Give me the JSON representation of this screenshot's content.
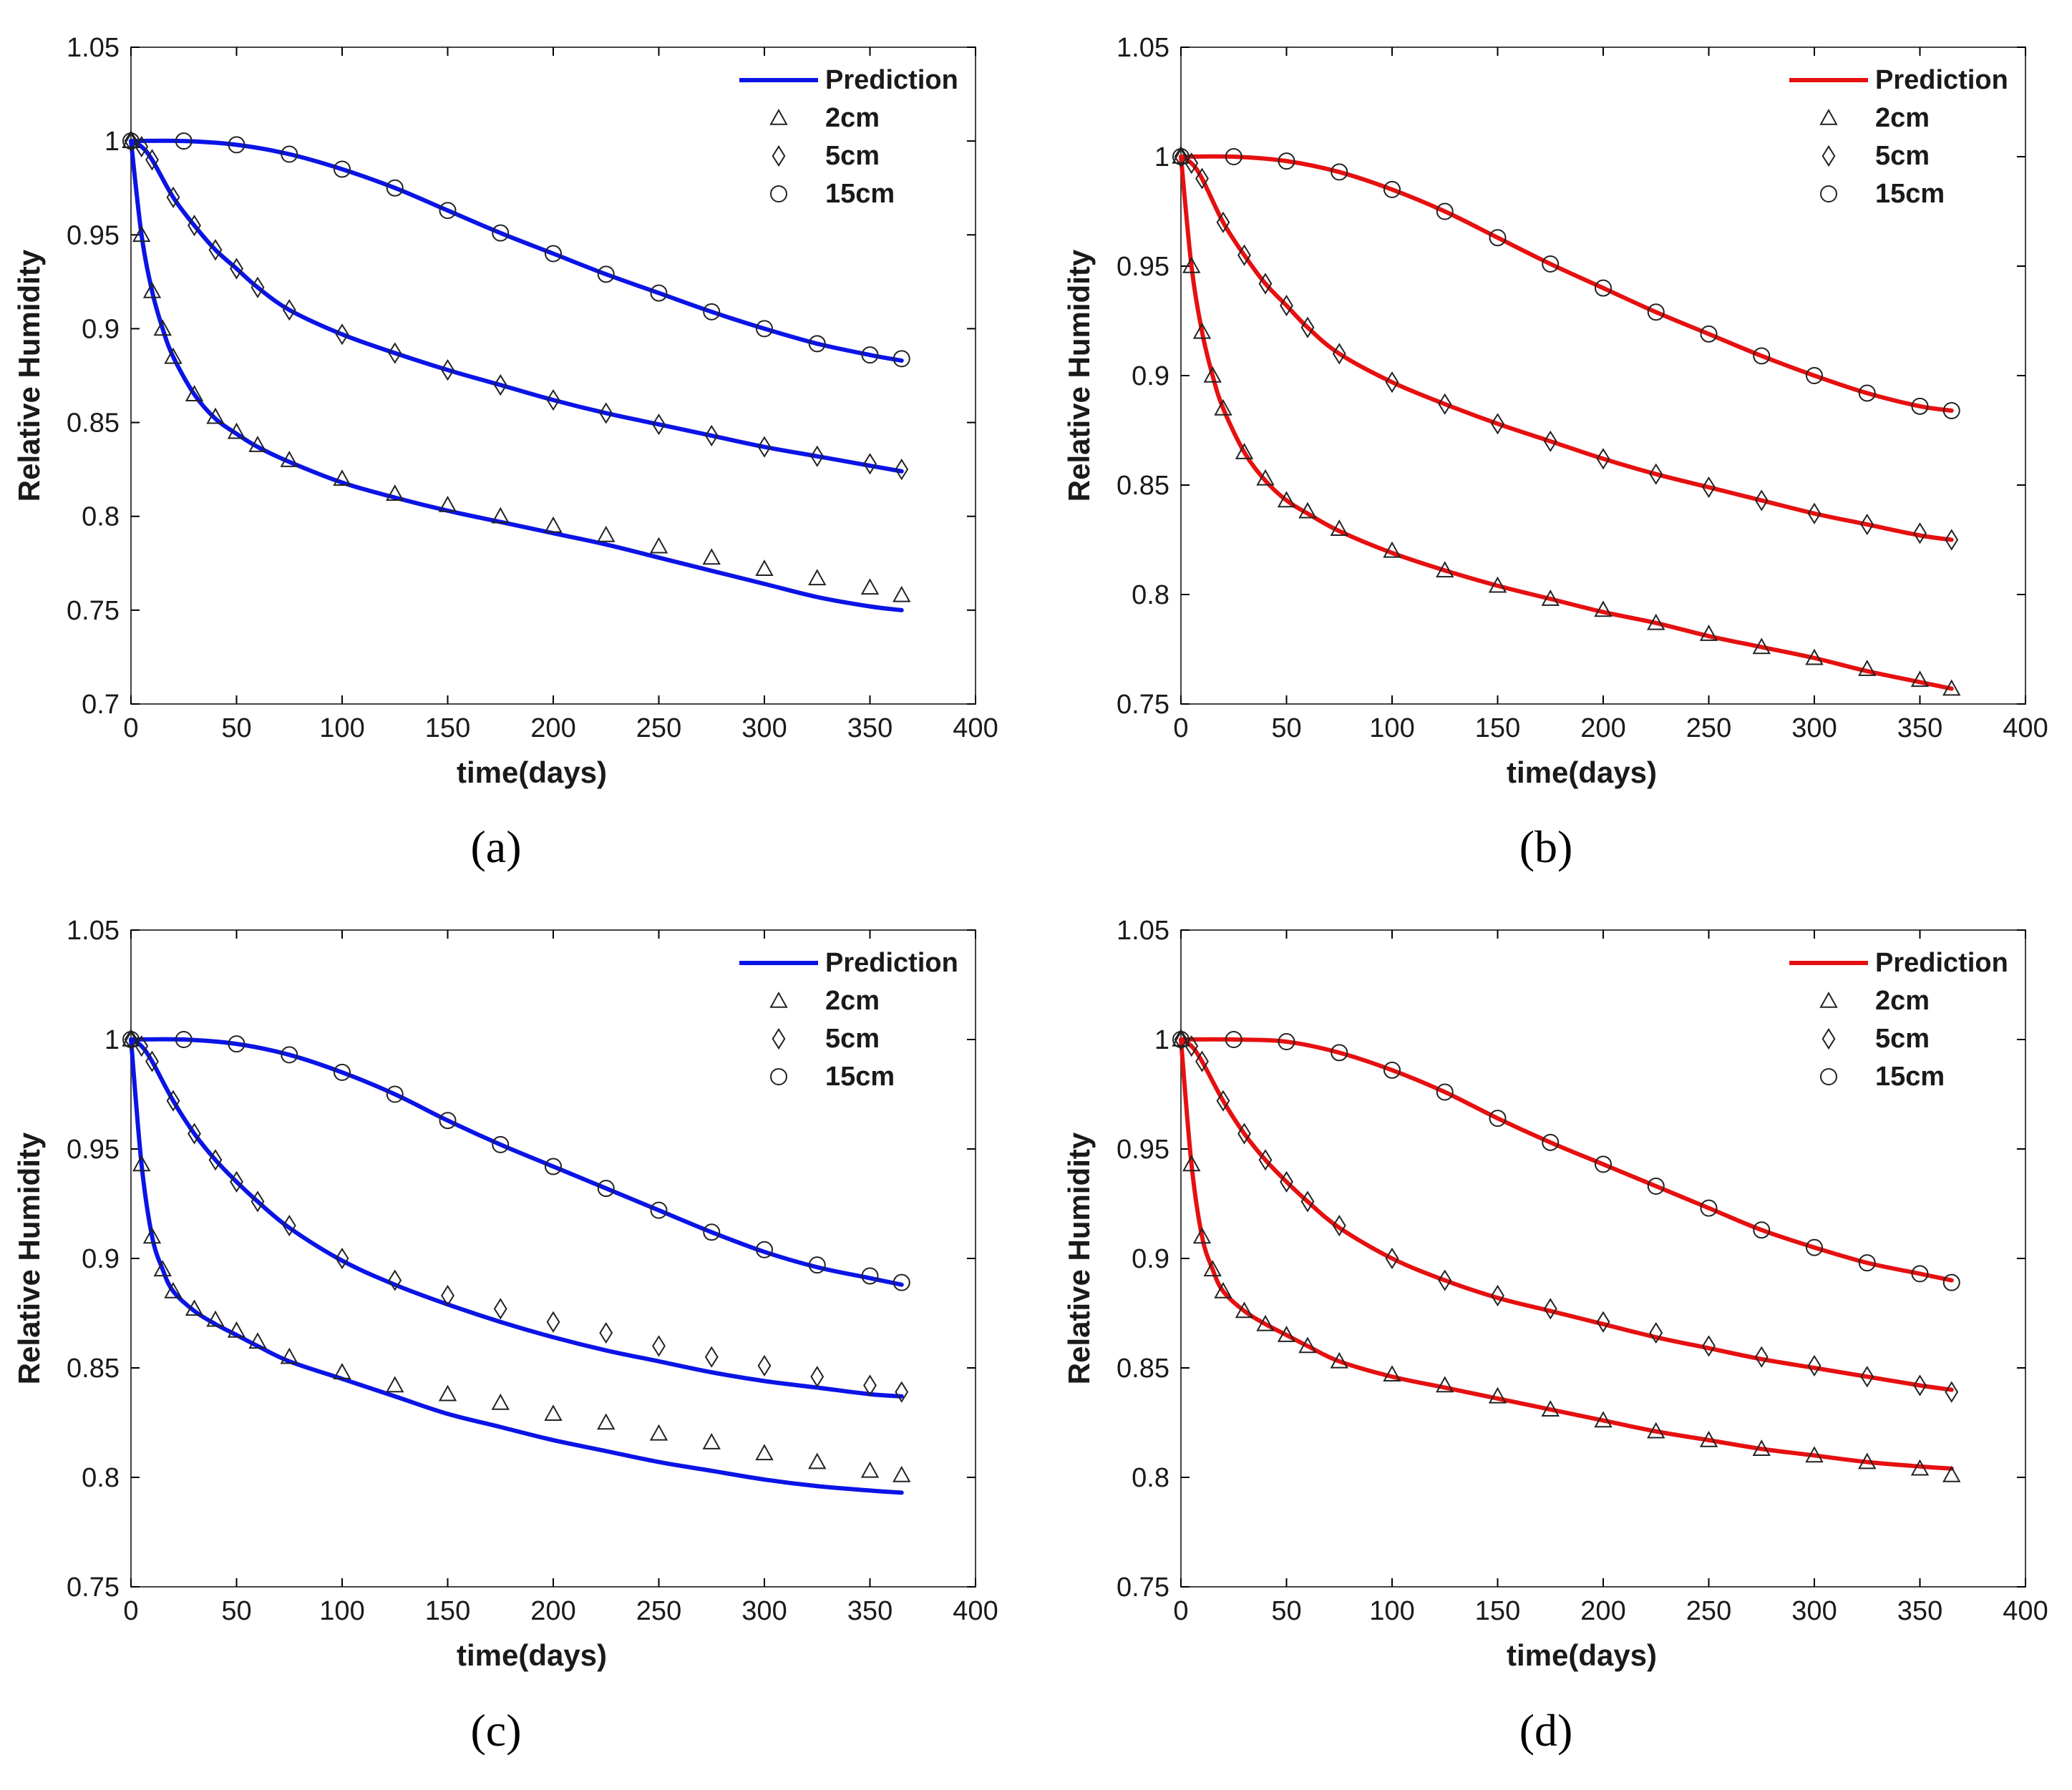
{
  "chart_data": [
    {
      "panel": "(a)",
      "type": "line",
      "line_color": "#0a14e6",
      "xlabel": "time(days)",
      "ylabel": "Relative Humidity",
      "xlim": [
        0,
        400
      ],
      "ylim": [
        0.7,
        1.05
      ],
      "xticks": [
        "0",
        "50",
        "100",
        "150",
        "200",
        "250",
        "300",
        "350",
        "400"
      ],
      "yticks": [
        "0.7",
        "0.75",
        "0.8",
        "0.85",
        "0.9",
        "0.95",
        "1",
        "1.05"
      ],
      "legend": [
        "Prediction",
        "2cm",
        "5cm",
        "15cm"
      ],
      "series": [
        {
          "name": "2cm",
          "marker": "triangle",
          "x": [
            0,
            5,
            10,
            15,
            20,
            30,
            40,
            50,
            60,
            75,
            100,
            125,
            150,
            175,
            200,
            225,
            250,
            275,
            300,
            325,
            350,
            365
          ],
          "measured": [
            1.0,
            0.95,
            0.92,
            0.9,
            0.885,
            0.865,
            0.853,
            0.845,
            0.838,
            0.83,
            0.82,
            0.812,
            0.806,
            0.8,
            0.795,
            0.79,
            0.784,
            0.778,
            0.772,
            0.767,
            0.762,
            0.758
          ],
          "prediction": [
            1.0,
            0.95,
            0.92,
            0.9,
            0.885,
            0.865,
            0.852,
            0.844,
            0.837,
            0.829,
            0.818,
            0.81,
            0.803,
            0.797,
            0.791,
            0.785,
            0.778,
            0.771,
            0.764,
            0.757,
            0.752,
            0.75
          ]
        },
        {
          "name": "5cm",
          "marker": "diamond",
          "x": [
            0,
            5,
            10,
            20,
            30,
            40,
            50,
            60,
            75,
            100,
            125,
            150,
            175,
            200,
            225,
            250,
            275,
            300,
            325,
            350,
            365
          ],
          "measured": [
            1.0,
            0.997,
            0.99,
            0.97,
            0.955,
            0.942,
            0.932,
            0.922,
            0.91,
            0.897,
            0.887,
            0.878,
            0.87,
            0.862,
            0.855,
            0.849,
            0.843,
            0.837,
            0.832,
            0.828,
            0.825
          ],
          "prediction": [
            1.0,
            0.997,
            0.99,
            0.97,
            0.955,
            0.942,
            0.932,
            0.922,
            0.91,
            0.897,
            0.887,
            0.878,
            0.87,
            0.862,
            0.855,
            0.849,
            0.843,
            0.837,
            0.832,
            0.827,
            0.824
          ]
        },
        {
          "name": "15cm",
          "marker": "circle",
          "x": [
            0,
            25,
            50,
            75,
            100,
            125,
            150,
            175,
            200,
            225,
            250,
            275,
            300,
            325,
            350,
            365
          ],
          "measured": [
            1.0,
            1.0,
            0.998,
            0.993,
            0.985,
            0.975,
            0.963,
            0.951,
            0.94,
            0.929,
            0.919,
            0.909,
            0.9,
            0.892,
            0.886,
            0.884
          ],
          "prediction": [
            1.0,
            1.0,
            0.998,
            0.993,
            0.985,
            0.975,
            0.963,
            0.951,
            0.94,
            0.929,
            0.919,
            0.909,
            0.9,
            0.892,
            0.886,
            0.883
          ]
        }
      ]
    },
    {
      "panel": "(b)",
      "type": "line",
      "line_color": "#e61010",
      "xlabel": "time(days)",
      "ylabel": "Relative Humidity",
      "xlim": [
        0,
        400
      ],
      "ylim": [
        0.75,
        1.05
      ],
      "xticks": [
        "0",
        "50",
        "100",
        "150",
        "200",
        "250",
        "300",
        "350",
        "400"
      ],
      "yticks": [
        "0.75",
        "0.8",
        "0.85",
        "0.9",
        "0.95",
        "1",
        "1.05"
      ],
      "legend": [
        "Prediction",
        "2cm",
        "5cm",
        "15cm"
      ],
      "series": [
        {
          "name": "2cm",
          "marker": "triangle",
          "x": [
            0,
            5,
            10,
            15,
            20,
            30,
            40,
            50,
            60,
            75,
            100,
            125,
            150,
            175,
            200,
            225,
            250,
            275,
            300,
            325,
            350,
            365
          ],
          "measured": [
            1.0,
            0.95,
            0.92,
            0.9,
            0.885,
            0.865,
            0.853,
            0.843,
            0.838,
            0.83,
            0.82,
            0.811,
            0.804,
            0.798,
            0.793,
            0.787,
            0.782,
            0.776,
            0.771,
            0.766,
            0.761,
            0.757
          ],
          "prediction": [
            1.0,
            0.95,
            0.92,
            0.9,
            0.885,
            0.865,
            0.852,
            0.843,
            0.837,
            0.829,
            0.819,
            0.811,
            0.804,
            0.798,
            0.792,
            0.787,
            0.781,
            0.776,
            0.771,
            0.765,
            0.76,
            0.757
          ]
        },
        {
          "name": "5cm",
          "marker": "diamond",
          "x": [
            0,
            5,
            10,
            20,
            30,
            40,
            50,
            60,
            75,
            100,
            125,
            150,
            175,
            200,
            225,
            250,
            275,
            300,
            325,
            350,
            365
          ],
          "measured": [
            1.0,
            0.997,
            0.99,
            0.97,
            0.955,
            0.942,
            0.932,
            0.922,
            0.91,
            0.897,
            0.887,
            0.878,
            0.87,
            0.862,
            0.855,
            0.849,
            0.843,
            0.837,
            0.832,
            0.828,
            0.825
          ],
          "prediction": [
            1.0,
            0.997,
            0.99,
            0.97,
            0.955,
            0.942,
            0.932,
            0.922,
            0.91,
            0.897,
            0.887,
            0.878,
            0.87,
            0.862,
            0.855,
            0.849,
            0.843,
            0.837,
            0.832,
            0.827,
            0.825
          ]
        },
        {
          "name": "15cm",
          "marker": "circle",
          "x": [
            0,
            25,
            50,
            75,
            100,
            125,
            150,
            175,
            200,
            225,
            250,
            275,
            300,
            325,
            350,
            365
          ],
          "measured": [
            1.0,
            1.0,
            0.998,
            0.993,
            0.985,
            0.975,
            0.963,
            0.951,
            0.94,
            0.929,
            0.919,
            0.909,
            0.9,
            0.892,
            0.886,
            0.884
          ],
          "prediction": [
            1.0,
            1.0,
            0.998,
            0.993,
            0.985,
            0.975,
            0.963,
            0.951,
            0.94,
            0.929,
            0.919,
            0.909,
            0.9,
            0.892,
            0.886,
            0.884
          ]
        }
      ]
    },
    {
      "panel": "(c)",
      "type": "line",
      "line_color": "#0a14e6",
      "xlabel": "time(days)",
      "ylabel": "Relative Humidity",
      "xlim": [
        0,
        400
      ],
      "ylim": [
        0.75,
        1.05
      ],
      "xticks": [
        "0",
        "50",
        "100",
        "150",
        "200",
        "250",
        "300",
        "350",
        "400"
      ],
      "yticks": [
        "0.75",
        "0.8",
        "0.85",
        "0.9",
        "0.95",
        "1",
        "1.05"
      ],
      "legend": [
        "Prediction",
        "2cm",
        "5cm",
        "15cm"
      ],
      "series": [
        {
          "name": "2cm",
          "marker": "triangle",
          "x": [
            0,
            5,
            10,
            15,
            20,
            30,
            40,
            50,
            60,
            75,
            100,
            125,
            150,
            175,
            200,
            225,
            250,
            275,
            300,
            325,
            350,
            365
          ],
          "measured": [
            1.0,
            0.943,
            0.91,
            0.895,
            0.885,
            0.877,
            0.872,
            0.867,
            0.862,
            0.855,
            0.848,
            0.842,
            0.838,
            0.834,
            0.829,
            0.825,
            0.82,
            0.816,
            0.811,
            0.807,
            0.803,
            0.801
          ],
          "prediction": [
            1.0,
            0.943,
            0.91,
            0.895,
            0.885,
            0.876,
            0.87,
            0.865,
            0.86,
            0.853,
            0.845,
            0.837,
            0.829,
            0.823,
            0.817,
            0.812,
            0.807,
            0.803,
            0.799,
            0.796,
            0.794,
            0.793
          ]
        },
        {
          "name": "5cm",
          "marker": "diamond",
          "x": [
            0,
            5,
            10,
            20,
            30,
            40,
            50,
            60,
            75,
            100,
            125,
            150,
            175,
            200,
            225,
            250,
            275,
            300,
            325,
            350,
            365
          ],
          "measured": [
            1.0,
            0.997,
            0.99,
            0.972,
            0.957,
            0.945,
            0.935,
            0.926,
            0.915,
            0.9,
            0.89,
            0.883,
            0.877,
            0.871,
            0.866,
            0.86,
            0.855,
            0.851,
            0.846,
            0.842,
            0.839
          ],
          "prediction": [
            1.0,
            0.997,
            0.99,
            0.972,
            0.957,
            0.945,
            0.935,
            0.926,
            0.914,
            0.899,
            0.888,
            0.879,
            0.871,
            0.864,
            0.858,
            0.853,
            0.848,
            0.844,
            0.841,
            0.838,
            0.837
          ]
        },
        {
          "name": "15cm",
          "marker": "circle",
          "x": [
            0,
            25,
            50,
            75,
            100,
            125,
            150,
            175,
            200,
            225,
            250,
            275,
            300,
            325,
            350,
            365
          ],
          "measured": [
            1.0,
            1.0,
            0.998,
            0.993,
            0.985,
            0.975,
            0.963,
            0.952,
            0.942,
            0.932,
            0.922,
            0.912,
            0.904,
            0.897,
            0.892,
            0.889
          ],
          "prediction": [
            1.0,
            1.0,
            0.998,
            0.993,
            0.985,
            0.975,
            0.963,
            0.952,
            0.942,
            0.932,
            0.922,
            0.912,
            0.903,
            0.896,
            0.891,
            0.888
          ]
        }
      ]
    },
    {
      "panel": "(d)",
      "type": "line",
      "line_color": "#e61010",
      "xlabel": "time(days)",
      "ylabel": "Relative Humidity",
      "xlim": [
        0,
        400
      ],
      "ylim": [
        0.75,
        1.05
      ],
      "xticks": [
        "0",
        "50",
        "100",
        "150",
        "200",
        "250",
        "300",
        "350",
        "400"
      ],
      "yticks": [
        "0.75",
        "0.8",
        "0.85",
        "0.9",
        "0.95",
        "1",
        "1.05"
      ],
      "legend": [
        "Prediction",
        "2cm",
        "5cm",
        "15cm"
      ],
      "series": [
        {
          "name": "2cm",
          "marker": "triangle",
          "x": [
            0,
            5,
            10,
            15,
            20,
            30,
            40,
            50,
            60,
            75,
            100,
            125,
            150,
            175,
            200,
            225,
            250,
            275,
            300,
            325,
            350,
            365
          ],
          "measured": [
            1.0,
            0.943,
            0.91,
            0.895,
            0.885,
            0.876,
            0.87,
            0.865,
            0.86,
            0.853,
            0.847,
            0.842,
            0.837,
            0.831,
            0.826,
            0.821,
            0.817,
            0.813,
            0.81,
            0.807,
            0.804,
            0.801
          ],
          "prediction": [
            1.0,
            0.943,
            0.91,
            0.895,
            0.885,
            0.876,
            0.87,
            0.865,
            0.86,
            0.853,
            0.846,
            0.841,
            0.836,
            0.831,
            0.826,
            0.821,
            0.817,
            0.813,
            0.81,
            0.807,
            0.805,
            0.804
          ]
        },
        {
          "name": "5cm",
          "marker": "diamond",
          "x": [
            0,
            5,
            10,
            20,
            30,
            40,
            50,
            60,
            75,
            100,
            125,
            150,
            175,
            200,
            225,
            250,
            275,
            300,
            325,
            350,
            365
          ],
          "measured": [
            1.0,
            0.997,
            0.99,
            0.972,
            0.957,
            0.945,
            0.935,
            0.926,
            0.915,
            0.9,
            0.89,
            0.883,
            0.877,
            0.871,
            0.866,
            0.86,
            0.855,
            0.851,
            0.846,
            0.842,
            0.839
          ],
          "prediction": [
            1.0,
            0.997,
            0.99,
            0.972,
            0.957,
            0.945,
            0.935,
            0.926,
            0.914,
            0.9,
            0.89,
            0.882,
            0.876,
            0.87,
            0.864,
            0.859,
            0.854,
            0.85,
            0.846,
            0.842,
            0.84
          ]
        },
        {
          "name": "15cm",
          "marker": "circle",
          "x": [
            0,
            25,
            50,
            75,
            100,
            125,
            150,
            175,
            200,
            225,
            250,
            275,
            300,
            325,
            350,
            365
          ],
          "measured": [
            1.0,
            1.0,
            0.999,
            0.994,
            0.986,
            0.976,
            0.964,
            0.953,
            0.943,
            0.933,
            0.923,
            0.913,
            0.905,
            0.898,
            0.893,
            0.889
          ],
          "prediction": [
            1.0,
            1.0,
            0.999,
            0.994,
            0.986,
            0.976,
            0.964,
            0.953,
            0.943,
            0.933,
            0.923,
            0.913,
            0.905,
            0.898,
            0.893,
            0.89
          ]
        }
      ]
    }
  ]
}
